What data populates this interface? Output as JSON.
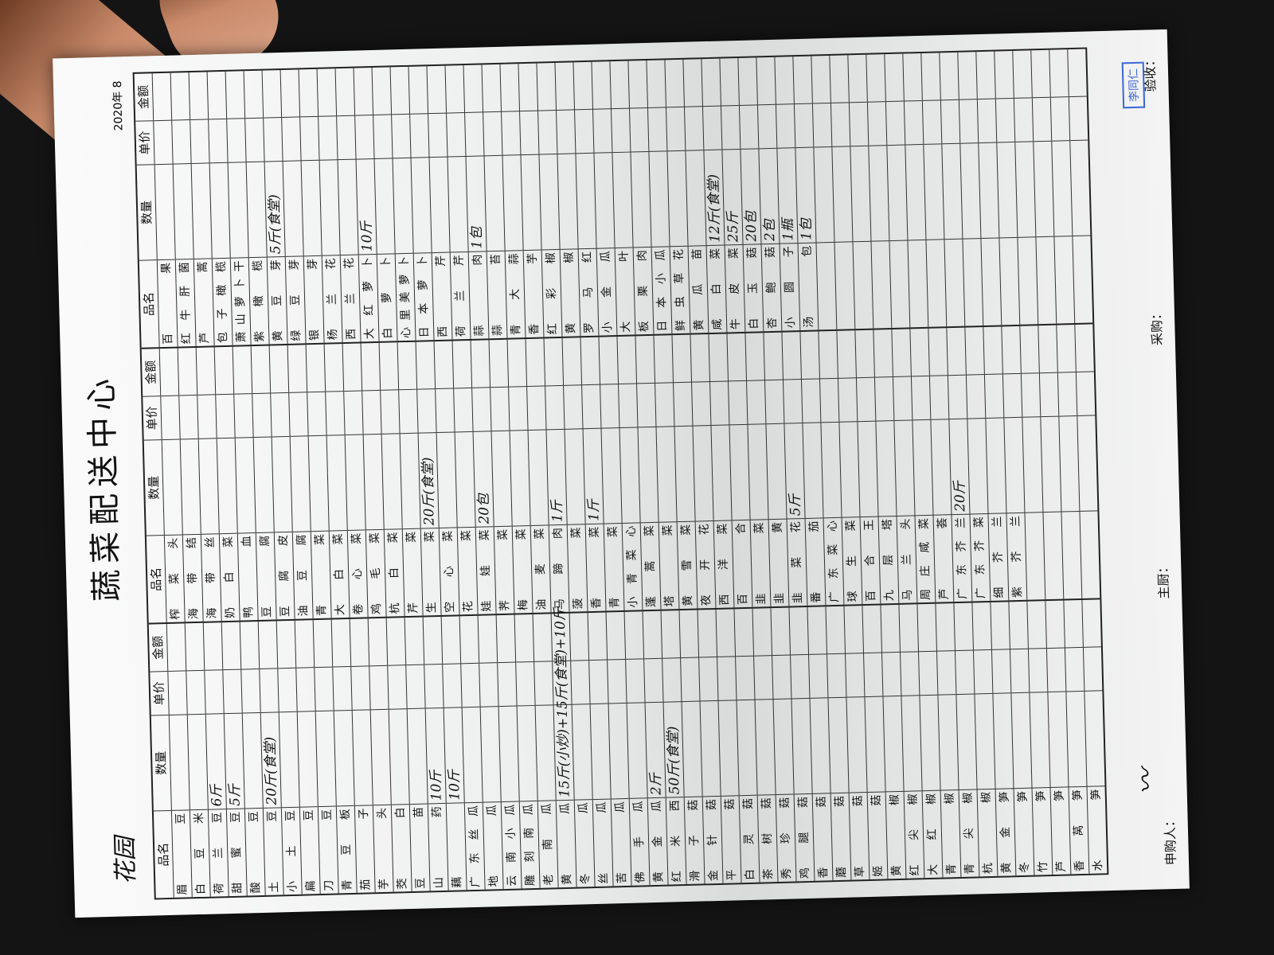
{
  "document": {
    "title": "蔬菜配送中心",
    "handwritten_title": "花园",
    "date": "2020年 8",
    "headers": [
      "品名",
      "数量",
      "单价",
      "金额"
    ],
    "groups": [
      {
        "rows": [
          {
            "name": "眉豆"
          },
          {
            "name": "白豆米"
          },
          {
            "name": "荷兰豆",
            "qty": "6斤"
          },
          {
            "name": "甜蜜豆",
            "qty": "5斤"
          },
          {
            "name": "酸豆"
          },
          {
            "name": "土豆",
            "qty": "20斤(食堂)"
          },
          {
            "name": "小土豆"
          },
          {
            "name": "扁豆"
          },
          {
            "name": "刀豆"
          },
          {
            "name": "青豆板"
          },
          {
            "name": "茄子"
          },
          {
            "name": "芋头"
          },
          {
            "name": "茭白"
          },
          {
            "name": "豆苗"
          },
          {
            "name": "山药",
            "qty": "10斤"
          },
          {
            "name": "藕",
            "qty": "10斤"
          },
          {
            "name": "广东丝瓜"
          },
          {
            "name": "地瓜"
          },
          {
            "name": "云南小瓜"
          },
          {
            "name": "雕刻南瓜"
          },
          {
            "name": "老南瓜"
          },
          {
            "name": "黄瓜",
            "qty": "15斤(小炒)+15斤(食堂)+10斤"
          },
          {
            "name": "冬瓜"
          },
          {
            "name": "丝瓜"
          },
          {
            "name": "苦瓜"
          },
          {
            "name": "佛手瓜"
          },
          {
            "name": "黄金瓜",
            "qty": "2斤"
          },
          {
            "name": "红米西",
            "qty": "50斤(食堂)"
          },
          {
            "name": "滑子菇"
          },
          {
            "name": "金针菇"
          },
          {
            "name": "平菇"
          },
          {
            "name": "白灵菇"
          },
          {
            "name": "茶树菇"
          },
          {
            "name": "秀珍菇"
          },
          {
            "name": "鸡腿菇"
          },
          {
            "name": "香菇"
          },
          {
            "name": "蘑菇"
          },
          {
            "name": "草菇"
          },
          {
            "name": "姬菇"
          },
          {
            "name": "黄椒"
          },
          {
            "name": "红尖椒"
          },
          {
            "name": "大红椒"
          },
          {
            "name": "青椒"
          },
          {
            "name": "青尖椒"
          },
          {
            "name": "杭椒"
          },
          {
            "name": "黄金笋"
          },
          {
            "name": "冬笋"
          },
          {
            "name": "竹笋"
          },
          {
            "name": "芦笋"
          },
          {
            "name": "香莴笋"
          },
          {
            "name": "水笋"
          }
        ]
      },
      {
        "rows": [
          {
            "name": "榨菜头"
          },
          {
            "name": "海带结"
          },
          {
            "name": "海带丝"
          },
          {
            "name": "奶白菜"
          },
          {
            "name": "鸭血"
          },
          {
            "name": "豆腐"
          },
          {
            "name": "豆腐皮"
          },
          {
            "name": "油豆腐"
          },
          {
            "name": "青菜"
          },
          {
            "name": "大白菜"
          },
          {
            "name": "卷心菜"
          },
          {
            "name": "鸡毛菜"
          },
          {
            "name": "杭白菜"
          },
          {
            "name": "芹菜"
          },
          {
            "name": "生菜",
            "qty": "20斤(食堂)"
          },
          {
            "name": "空心菜"
          },
          {
            "name": "花菜"
          },
          {
            "name": "娃娃菜",
            "qty": "20包"
          },
          {
            "name": "荠菜"
          },
          {
            "name": "梅菜"
          },
          {
            "name": "油麦菜"
          },
          {
            "name": "马蹄肉",
            "qty": "1斤"
          },
          {
            "name": "菠菜"
          },
          {
            "name": "香菜",
            "qty": "1斤"
          },
          {
            "name": "青菜"
          },
          {
            "name": "小青菜心"
          },
          {
            "name": "蓬蒿菜"
          },
          {
            "name": "塔菜"
          },
          {
            "name": "黄雪菜"
          },
          {
            "name": "夜开花"
          },
          {
            "name": "西洋菜"
          },
          {
            "name": "百合"
          },
          {
            "name": "韭菜"
          },
          {
            "name": "韭黄"
          },
          {
            "name": "韭菜花",
            "qty": "5斤"
          },
          {
            "name": "番茄"
          },
          {
            "name": "广东菜心"
          },
          {
            "name": "球生菜"
          },
          {
            "name": "百合王"
          },
          {
            "name": "九层塔"
          },
          {
            "name": "马兰头"
          },
          {
            "name": "周庄咸菜"
          },
          {
            "name": "芦荟"
          },
          {
            "name": "广东芥兰",
            "qty": "20斤"
          },
          {
            "name": "广东芥菜"
          },
          {
            "name": "细芥兰"
          },
          {
            "name": "紫芥兰"
          }
        ]
      },
      {
        "rows": [
          {
            "name": "百果"
          },
          {
            "name": "红牛肝菌"
          },
          {
            "name": "芦蒿"
          },
          {
            "name": "包子橄榄"
          },
          {
            "name": "萧山萝卜干"
          },
          {
            "name": "紫橄榄"
          },
          {
            "name": "黄豆芽",
            "qty": "5斤(食堂)"
          },
          {
            "name": "绿豆芽"
          },
          {
            "name": "银芽"
          },
          {
            "name": "杨兰花"
          },
          {
            "name": "西兰花"
          },
          {
            "name": "大红萝卜",
            "qty": "10斤"
          },
          {
            "name": "白萝卜"
          },
          {
            "name": "心里美萝卜"
          },
          {
            "name": "日本萝卜"
          },
          {
            "name": "西芹"
          },
          {
            "name": "荷兰芹"
          },
          {
            "name": "蒜肉",
            "qty": "1包"
          },
          {
            "name": "蒜苔"
          },
          {
            "name": "青大蒜"
          },
          {
            "name": "香芋"
          },
          {
            "name": "红彩椒"
          },
          {
            "name": "黄椒"
          },
          {
            "name": "罗马红"
          },
          {
            "name": "小金瓜"
          },
          {
            "name": "大叶"
          },
          {
            "name": "板栗肉"
          },
          {
            "name": "日本小瓜"
          },
          {
            "name": "鲜虫草花"
          },
          {
            "name": "黄瓜苗"
          },
          {
            "name": "咸白菜",
            "qty": "12斤(食堂)"
          },
          {
            "name": "牛皮菜",
            "qty": "25斤"
          },
          {
            "name": "白玉菇",
            "qty": "20包"
          },
          {
            "name": "杏鲍菇",
            "qty": "2包"
          },
          {
            "name": "小圆子",
            "qty": "1瓶"
          },
          {
            "name": "汤包",
            "qty": "1包"
          },
          {
            "name": ""
          },
          {
            "name": ""
          }
        ]
      }
    ],
    "footer": {
      "requester": "申购人：",
      "chef": "主厨：",
      "purchaser": "采购：",
      "inspector": "验收："
    },
    "stamp": "李同仁",
    "stamp_color": "#3a66d8"
  }
}
